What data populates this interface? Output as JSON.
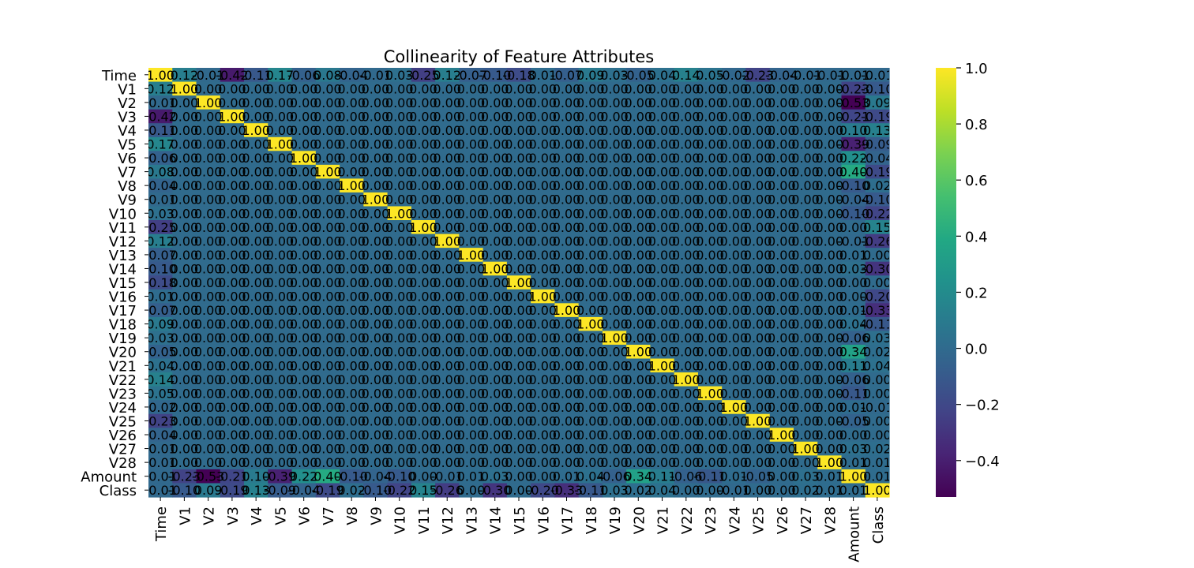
{
  "chart_data": {
    "type": "heatmap",
    "title": "Collinearity of Feature Attributes",
    "xlabel": "",
    "ylabel": "",
    "labels": [
      "Time",
      "V1",
      "V2",
      "V3",
      "V4",
      "V5",
      "V6",
      "V7",
      "V8",
      "V9",
      "V10",
      "V11",
      "V12",
      "V13",
      "V14",
      "V15",
      "V16",
      "V17",
      "V18",
      "V19",
      "V20",
      "V21",
      "V22",
      "V23",
      "V24",
      "V25",
      "V26",
      "V27",
      "V28",
      "Amount",
      "Class"
    ],
    "matrix": [
      [
        1.0,
        0.12,
        -0.01,
        -0.42,
        -0.11,
        0.17,
        -0.06,
        0.08,
        -0.04,
        -0.01,
        0.03,
        -0.25,
        0.12,
        -0.07,
        -0.1,
        -0.18,
        0.01,
        -0.07,
        0.09,
        0.03,
        -0.05,
        0.04,
        0.14,
        0.05,
        -0.02,
        -0.23,
        -0.04,
        -0.01,
        -0.01,
        -0.01,
        -0.01
      ],
      [
        0.12,
        1.0,
        0.0,
        0.0,
        0.0,
        0.0,
        0.0,
        0.0,
        0.0,
        0.0,
        0.0,
        0.0,
        0.0,
        0.0,
        0.0,
        0.0,
        0.0,
        0.0,
        0.0,
        0.0,
        0.0,
        0.0,
        0.0,
        0.0,
        0.0,
        0.0,
        0.0,
        0.0,
        0.0,
        -0.23,
        -0.1
      ],
      [
        -0.01,
        0.0,
        1.0,
        0.0,
        0.0,
        0.0,
        0.0,
        0.0,
        0.0,
        0.0,
        0.0,
        0.0,
        0.0,
        0.0,
        0.0,
        0.0,
        0.0,
        0.0,
        0.0,
        0.0,
        0.0,
        0.0,
        0.0,
        0.0,
        0.0,
        0.0,
        0.0,
        0.0,
        0.0,
        -0.53,
        0.09
      ],
      [
        -0.42,
        0.0,
        0.0,
        1.0,
        0.0,
        0.0,
        0.0,
        0.0,
        0.0,
        0.0,
        0.0,
        0.0,
        0.0,
        0.0,
        0.0,
        0.0,
        0.0,
        0.0,
        0.0,
        0.0,
        0.0,
        0.0,
        0.0,
        0.0,
        0.0,
        0.0,
        0.0,
        0.0,
        0.0,
        -0.21,
        -0.19
      ],
      [
        -0.11,
        0.0,
        0.0,
        0.0,
        1.0,
        0.0,
        0.0,
        0.0,
        0.0,
        0.0,
        0.0,
        0.0,
        0.0,
        0.0,
        0.0,
        0.0,
        0.0,
        0.0,
        0.0,
        0.0,
        0.0,
        0.0,
        0.0,
        0.0,
        0.0,
        0.0,
        0.0,
        0.0,
        0.0,
        0.1,
        0.13
      ],
      [
        0.17,
        0.0,
        0.0,
        0.0,
        0.0,
        1.0,
        0.0,
        0.0,
        0.0,
        0.0,
        0.0,
        0.0,
        0.0,
        0.0,
        0.0,
        0.0,
        0.0,
        0.0,
        0.0,
        0.0,
        0.0,
        0.0,
        0.0,
        0.0,
        0.0,
        0.0,
        0.0,
        0.0,
        0.0,
        -0.39,
        -0.09
      ],
      [
        -0.06,
        0.0,
        0.0,
        0.0,
        0.0,
        0.0,
        1.0,
        0.0,
        0.0,
        0.0,
        0.0,
        0.0,
        0.0,
        0.0,
        0.0,
        0.0,
        0.0,
        0.0,
        0.0,
        0.0,
        0.0,
        0.0,
        0.0,
        0.0,
        0.0,
        0.0,
        0.0,
        0.0,
        0.0,
        0.22,
        -0.04
      ],
      [
        0.08,
        0.0,
        0.0,
        0.0,
        0.0,
        0.0,
        0.0,
        1.0,
        0.0,
        0.0,
        0.0,
        0.0,
        0.0,
        0.0,
        0.0,
        0.0,
        0.0,
        0.0,
        0.0,
        0.0,
        0.0,
        0.0,
        0.0,
        0.0,
        0.0,
        0.0,
        0.0,
        0.0,
        0.0,
        0.4,
        -0.19
      ],
      [
        -0.04,
        0.0,
        0.0,
        0.0,
        0.0,
        0.0,
        0.0,
        0.0,
        1.0,
        0.0,
        0.0,
        0.0,
        0.0,
        0.0,
        0.0,
        0.0,
        0.0,
        0.0,
        0.0,
        0.0,
        0.0,
        0.0,
        0.0,
        0.0,
        0.0,
        0.0,
        0.0,
        0.0,
        0.0,
        -0.1,
        0.02
      ],
      [
        -0.01,
        0.0,
        0.0,
        0.0,
        0.0,
        0.0,
        0.0,
        0.0,
        0.0,
        1.0,
        0.0,
        0.0,
        0.0,
        0.0,
        0.0,
        0.0,
        0.0,
        0.0,
        0.0,
        0.0,
        0.0,
        0.0,
        0.0,
        0.0,
        0.0,
        0.0,
        0.0,
        0.0,
        0.0,
        -0.04,
        -0.1
      ],
      [
        0.03,
        0.0,
        0.0,
        0.0,
        0.0,
        0.0,
        0.0,
        0.0,
        0.0,
        0.0,
        1.0,
        0.0,
        0.0,
        0.0,
        0.0,
        0.0,
        0.0,
        0.0,
        0.0,
        0.0,
        0.0,
        0.0,
        0.0,
        0.0,
        0.0,
        0.0,
        0.0,
        0.0,
        0.0,
        -0.1,
        -0.22
      ],
      [
        -0.25,
        0.0,
        0.0,
        0.0,
        0.0,
        0.0,
        0.0,
        0.0,
        0.0,
        0.0,
        0.0,
        1.0,
        0.0,
        0.0,
        0.0,
        0.0,
        0.0,
        0.0,
        0.0,
        0.0,
        0.0,
        0.0,
        0.0,
        0.0,
        0.0,
        0.0,
        0.0,
        0.0,
        0.0,
        0.0,
        0.15
      ],
      [
        0.12,
        0.0,
        0.0,
        0.0,
        0.0,
        0.0,
        0.0,
        0.0,
        0.0,
        0.0,
        0.0,
        0.0,
        1.0,
        0.0,
        0.0,
        0.0,
        0.0,
        0.0,
        0.0,
        0.0,
        0.0,
        0.0,
        0.0,
        0.0,
        0.0,
        0.0,
        0.0,
        0.0,
        0.0,
        -0.01,
        -0.26
      ],
      [
        -0.07,
        0.0,
        0.0,
        0.0,
        0.0,
        0.0,
        0.0,
        0.0,
        0.0,
        0.0,
        0.0,
        0.0,
        0.0,
        1.0,
        0.0,
        0.0,
        0.0,
        0.0,
        0.0,
        0.0,
        0.0,
        0.0,
        0.0,
        0.0,
        0.0,
        0.0,
        0.0,
        0.0,
        0.0,
        0.01,
        -0.0
      ],
      [
        -0.1,
        0.0,
        0.0,
        0.0,
        0.0,
        0.0,
        0.0,
        0.0,
        0.0,
        0.0,
        0.0,
        0.0,
        0.0,
        0.0,
        1.0,
        0.0,
        0.0,
        0.0,
        0.0,
        0.0,
        0.0,
        0.0,
        0.0,
        0.0,
        0.0,
        0.0,
        0.0,
        0.0,
        0.0,
        0.03,
        -0.3
      ],
      [
        -0.18,
        0.0,
        0.0,
        0.0,
        0.0,
        0.0,
        0.0,
        0.0,
        0.0,
        0.0,
        0.0,
        0.0,
        0.0,
        0.0,
        0.0,
        1.0,
        0.0,
        0.0,
        0.0,
        0.0,
        0.0,
        0.0,
        0.0,
        0.0,
        0.0,
        0.0,
        0.0,
        0.0,
        0.0,
        -0.0,
        -0.0
      ],
      [
        0.01,
        0.0,
        0.0,
        0.0,
        0.0,
        0.0,
        0.0,
        0.0,
        0.0,
        0.0,
        0.0,
        0.0,
        0.0,
        0.0,
        0.0,
        0.0,
        1.0,
        0.0,
        0.0,
        0.0,
        0.0,
        0.0,
        0.0,
        0.0,
        0.0,
        0.0,
        0.0,
        0.0,
        0.0,
        -0.0,
        -0.2
      ],
      [
        -0.07,
        0.0,
        0.0,
        0.0,
        0.0,
        0.0,
        0.0,
        0.0,
        0.0,
        0.0,
        0.0,
        0.0,
        0.0,
        0.0,
        0.0,
        0.0,
        0.0,
        1.0,
        0.0,
        0.0,
        0.0,
        0.0,
        0.0,
        0.0,
        0.0,
        0.0,
        0.0,
        0.0,
        0.0,
        0.01,
        -0.33
      ],
      [
        0.09,
        0.0,
        0.0,
        0.0,
        0.0,
        0.0,
        0.0,
        0.0,
        0.0,
        0.0,
        0.0,
        0.0,
        0.0,
        0.0,
        0.0,
        0.0,
        0.0,
        0.0,
        1.0,
        0.0,
        0.0,
        0.0,
        0.0,
        0.0,
        0.0,
        0.0,
        0.0,
        0.0,
        0.0,
        0.04,
        -0.11
      ],
      [
        0.03,
        0.0,
        0.0,
        0.0,
        0.0,
        0.0,
        0.0,
        0.0,
        0.0,
        0.0,
        0.0,
        0.0,
        0.0,
        0.0,
        0.0,
        0.0,
        0.0,
        0.0,
        0.0,
        1.0,
        0.0,
        0.0,
        0.0,
        0.0,
        0.0,
        0.0,
        0.0,
        0.0,
        0.0,
        -0.06,
        0.03
      ],
      [
        -0.05,
        0.0,
        0.0,
        0.0,
        0.0,
        0.0,
        0.0,
        0.0,
        0.0,
        0.0,
        0.0,
        0.0,
        0.0,
        0.0,
        0.0,
        0.0,
        0.0,
        0.0,
        0.0,
        0.0,
        1.0,
        0.0,
        0.0,
        0.0,
        0.0,
        0.0,
        0.0,
        0.0,
        0.0,
        0.34,
        0.02
      ],
      [
        0.04,
        0.0,
        0.0,
        0.0,
        0.0,
        0.0,
        0.0,
        0.0,
        0.0,
        0.0,
        0.0,
        0.0,
        0.0,
        0.0,
        0.0,
        0.0,
        0.0,
        0.0,
        0.0,
        0.0,
        0.0,
        1.0,
        0.0,
        0.0,
        0.0,
        0.0,
        0.0,
        0.0,
        0.0,
        0.11,
        0.04
      ],
      [
        0.14,
        0.0,
        0.0,
        0.0,
        0.0,
        0.0,
        0.0,
        0.0,
        0.0,
        0.0,
        0.0,
        0.0,
        0.0,
        0.0,
        0.0,
        0.0,
        0.0,
        0.0,
        0.0,
        0.0,
        0.0,
        0.0,
        1.0,
        0.0,
        0.0,
        0.0,
        0.0,
        0.0,
        0.0,
        -0.06,
        0.0
      ],
      [
        0.05,
        0.0,
        0.0,
        0.0,
        0.0,
        0.0,
        0.0,
        0.0,
        0.0,
        0.0,
        0.0,
        0.0,
        0.0,
        0.0,
        0.0,
        0.0,
        0.0,
        0.0,
        0.0,
        0.0,
        0.0,
        0.0,
        0.0,
        1.0,
        0.0,
        0.0,
        0.0,
        0.0,
        0.0,
        -0.11,
        -0.0
      ],
      [
        -0.02,
        0.0,
        0.0,
        0.0,
        0.0,
        0.0,
        0.0,
        0.0,
        0.0,
        0.0,
        0.0,
        0.0,
        0.0,
        0.0,
        0.0,
        0.0,
        0.0,
        0.0,
        0.0,
        0.0,
        0.0,
        0.0,
        0.0,
        0.0,
        1.0,
        0.0,
        0.0,
        0.0,
        0.0,
        0.01,
        -0.01
      ],
      [
        -0.23,
        0.0,
        0.0,
        0.0,
        0.0,
        0.0,
        0.0,
        0.0,
        0.0,
        0.0,
        0.0,
        0.0,
        0.0,
        0.0,
        0.0,
        0.0,
        0.0,
        0.0,
        0.0,
        0.0,
        0.0,
        0.0,
        0.0,
        0.0,
        0.0,
        1.0,
        0.0,
        0.0,
        0.0,
        -0.05,
        0.0
      ],
      [
        -0.04,
        0.0,
        0.0,
        0.0,
        0.0,
        0.0,
        0.0,
        0.0,
        0.0,
        0.0,
        0.0,
        0.0,
        0.0,
        0.0,
        0.0,
        0.0,
        0.0,
        0.0,
        0.0,
        0.0,
        0.0,
        0.0,
        0.0,
        0.0,
        0.0,
        0.0,
        1.0,
        0.0,
        0.0,
        -0.0,
        0.0
      ],
      [
        -0.01,
        0.0,
        0.0,
        0.0,
        0.0,
        0.0,
        0.0,
        0.0,
        0.0,
        0.0,
        0.0,
        0.0,
        0.0,
        0.0,
        0.0,
        0.0,
        0.0,
        0.0,
        0.0,
        0.0,
        0.0,
        0.0,
        0.0,
        0.0,
        0.0,
        0.0,
        0.0,
        1.0,
        0.0,
        0.03,
        0.02
      ],
      [
        -0.01,
        0.0,
        0.0,
        0.0,
        0.0,
        0.0,
        0.0,
        0.0,
        0.0,
        0.0,
        0.0,
        0.0,
        0.0,
        0.0,
        0.0,
        0.0,
        0.0,
        0.0,
        0.0,
        0.0,
        0.0,
        0.0,
        0.0,
        0.0,
        0.0,
        0.0,
        0.0,
        0.0,
        1.0,
        0.01,
        0.01
      ],
      [
        -0.01,
        -0.23,
        -0.53,
        -0.21,
        0.1,
        -0.39,
        0.22,
        0.4,
        -0.1,
        -0.04,
        -0.1,
        0.0,
        -0.01,
        0.01,
        0.03,
        -0.0,
        -0.0,
        0.01,
        0.04,
        -0.06,
        0.34,
        0.11,
        -0.06,
        -0.11,
        0.01,
        -0.05,
        -0.0,
        0.03,
        0.01,
        1.0,
        0.01
      ],
      [
        -0.01,
        -0.1,
        0.09,
        -0.19,
        0.13,
        -0.09,
        -0.04,
        -0.19,
        0.02,
        -0.1,
        -0.22,
        0.15,
        -0.26,
        -0.0,
        -0.3,
        -0.0,
        -0.2,
        -0.33,
        -0.11,
        0.03,
        0.02,
        0.04,
        0.0,
        -0.0,
        -0.01,
        0.0,
        0.0,
        0.02,
        0.01,
        0.01,
        1.0
      ]
    ],
    "colorbar": {
      "min": -0.53,
      "max": 1.0,
      "ticks": [
        1.0,
        0.8,
        0.6,
        0.4,
        0.2,
        0.0,
        -0.2,
        -0.4
      ],
      "tick_labels": [
        "1.0",
        "0.8",
        "0.6",
        "0.4",
        "0.2",
        "0.0",
        "−0.2",
        "−0.4"
      ],
      "colormap": "viridis"
    },
    "annotations": "cell values shown in each cell",
    "grid": false
  }
}
